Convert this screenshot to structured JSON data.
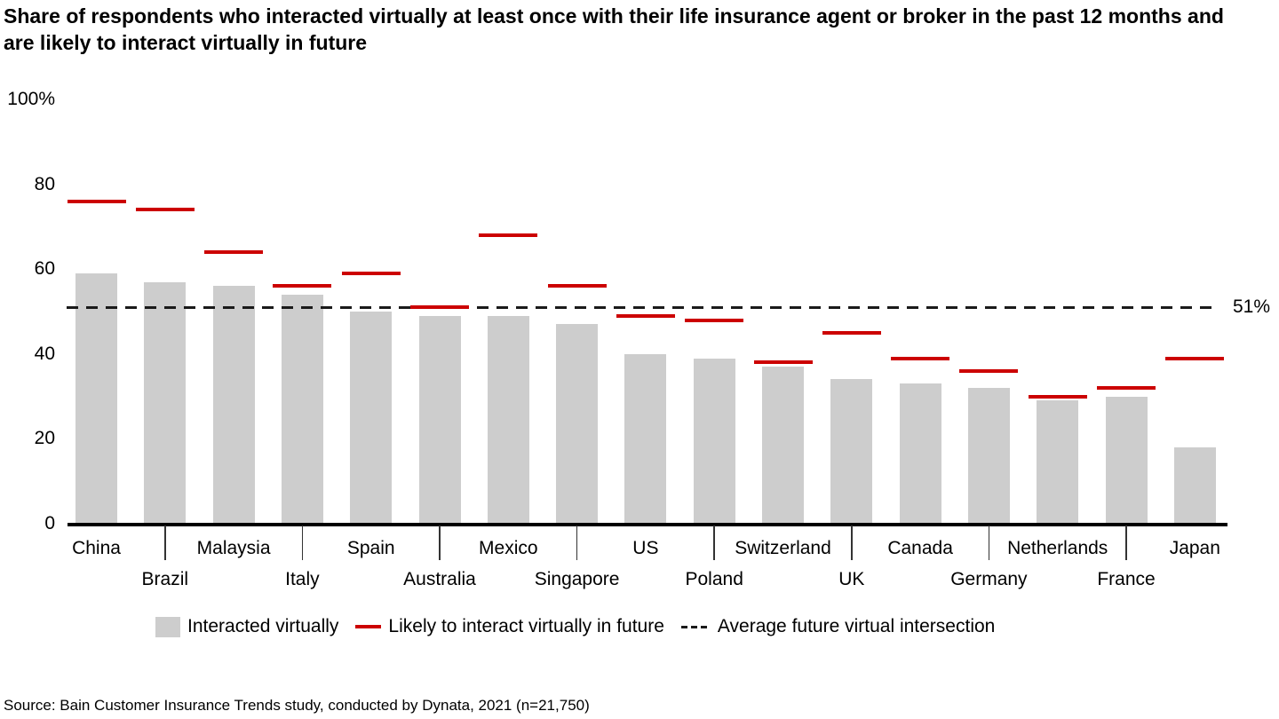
{
  "title": "Share of respondents who interacted virtually at least once with their life insurance agent or broker in the past 12 months and are likely to interact virtually in future",
  "source": "Source: Bain Customer Insurance Trends study, conducted by Dynata, 2021 (n=21,750)",
  "colors": {
    "bar": "#cdcdcd",
    "marker": "#cc0000",
    "axis": "#000000",
    "dashed_line": "#1a1a1a",
    "text": "#000000"
  },
  "legend": {
    "items": [
      {
        "label": "Interacted virtually",
        "swatch": "bar"
      },
      {
        "label": "Likely to interact virtually in future",
        "swatch": "line"
      },
      {
        "label": "Average future virtual intersection",
        "swatch": "dashed"
      }
    ]
  },
  "chart_data": {
    "type": "bar",
    "title": "Share of respondents who interacted virtually at least once with their life insurance agent or broker in the past 12 months and are likely to interact virtually in future",
    "unit": "percent",
    "categories": [
      "China",
      "Brazil",
      "Malaysia",
      "Italy",
      "Spain",
      "Australia",
      "Mexico",
      "Singapore",
      "US",
      "Poland",
      "Switzerland",
      "UK",
      "Canada",
      "Germany",
      "Netherlands",
      "France",
      "Japan"
    ],
    "series": [
      {
        "name": "Interacted virtually",
        "style": "bar",
        "color": "#cdcdcd",
        "values": [
          59,
          57,
          56,
          54,
          50,
          49,
          49,
          47,
          40,
          39,
          37,
          34,
          33,
          32,
          29,
          30,
          18
        ]
      },
      {
        "name": "Likely to interact virtually in future",
        "style": "dash-marker",
        "color": "#cc0000",
        "values": [
          76,
          74,
          64,
          56,
          59,
          51,
          68,
          56,
          49,
          48,
          38,
          45,
          39,
          36,
          30,
          32,
          39
        ]
      }
    ],
    "average_line": {
      "value": 51,
      "label": "51%",
      "name": "Average future virtual intersection"
    },
    "ylim": [
      0,
      100
    ],
    "yticks": [
      {
        "value": 0,
        "label": "0"
      },
      {
        "value": 20,
        "label": "20"
      },
      {
        "value": 40,
        "label": "40"
      },
      {
        "value": 60,
        "label": "60"
      },
      {
        "value": 80,
        "label": "80"
      },
      {
        "value": 100,
        "label": "100%"
      }
    ],
    "grid": false,
    "legend_position": "bottom"
  }
}
